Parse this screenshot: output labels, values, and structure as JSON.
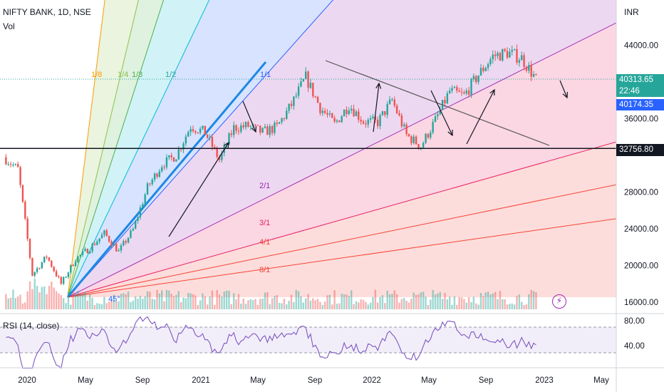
{
  "header": {
    "symbol": "NIFTY BANK, 1D, NSE",
    "volume_label": "Vol"
  },
  "price_axis": {
    "currency": "INR",
    "ticks": [
      "44000.00",
      "40000.00",
      "36000.00",
      "28000.00",
      "24000.00",
      "20000.00",
      "16000.00"
    ]
  },
  "price_tags": {
    "last_price": "40313.65",
    "countdown": "22:46",
    "fib_level": "40174.35",
    "horizontal_line": "32756.80"
  },
  "fan_labels": [
    "1/8",
    "1/4",
    "1/3",
    "1/2",
    "1/1",
    "2/1",
    "3/1",
    "4/1",
    "8/1",
    "45°"
  ],
  "rsi": {
    "title": "RSI (14, close)",
    "ticks": [
      "80.00",
      "40.00"
    ]
  },
  "time_axis": [
    "2020",
    "May",
    "Sep",
    "2021",
    "May",
    "Sep",
    "2022",
    "May",
    "Sep",
    "2023",
    "May"
  ],
  "colors": {
    "up": "#26a69a",
    "down": "#ef5350",
    "rsi_line": "#7e57c2",
    "fan_main": "#2962ff",
    "last_price_bg": "#26a69a",
    "fib_tag_bg": "#2962ff",
    "hline_tag_bg": "#131722"
  },
  "chart_data": {
    "type": "line",
    "title": "NIFTY BANK, 1D, NSE",
    "x": [
      "2020-01",
      "2020-02",
      "2020-03",
      "2020-04",
      "2020-05",
      "2020-06",
      "2020-07",
      "2020-08",
      "2020-09",
      "2020-10",
      "2020-11",
      "2020-12",
      "2021-01",
      "2021-02",
      "2021-03",
      "2021-04",
      "2021-05",
      "2021-06",
      "2021-07",
      "2021-08",
      "2021-09",
      "2021-10",
      "2021-11",
      "2021-12",
      "2022-01",
      "2022-02",
      "2022-03",
      "2022-04",
      "2022-05",
      "2022-06",
      "2022-07",
      "2022-08",
      "2022-09",
      "2022-10",
      "2022-11",
      "2022-12",
      "2023-01",
      "2023-02"
    ],
    "series": [
      {
        "values": [
          31800,
          30500,
          19000,
          21000,
          18000,
          20700,
          21900,
          23500,
          21500,
          23900,
          28500,
          31000,
          32000,
          35200,
          34500,
          31500,
          35000,
          35200,
          34500,
          35100,
          37500,
          40500,
          37200,
          35400,
          37500,
          35700,
          35600,
          38000,
          34200,
          33000,
          35800,
          39000,
          38500,
          40800,
          42800,
          43200,
          42600,
          40300
        ]
      }
    ],
    "ylim": [
      15500,
      45500
    ],
    "horizontal_line": 32756.8,
    "rsi_ylim": [
      20,
      90
    ]
  }
}
